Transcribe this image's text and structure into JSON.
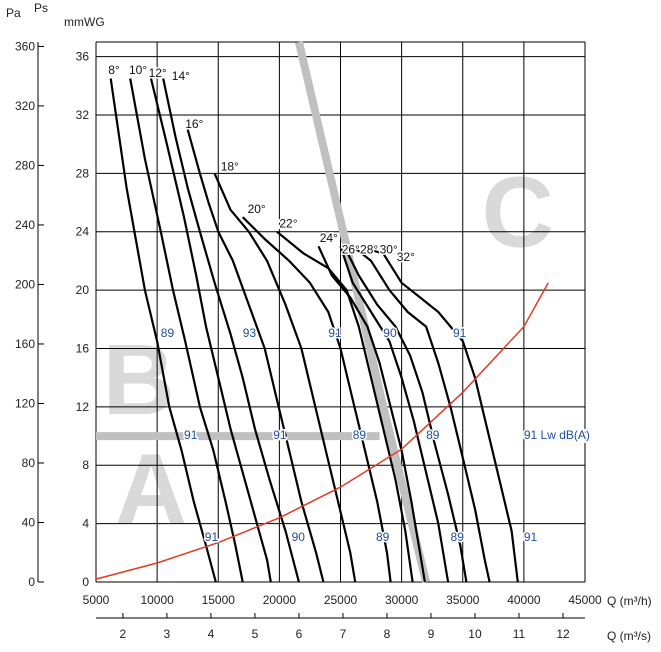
{
  "chart_data": {
    "type": "line",
    "axes": {
      "x_label_m3h": "Q (m³/h)",
      "x_label_m3s": "Q (m³/s)",
      "y_label_mmwg": "mmWG",
      "y_label_pa": "Pa",
      "y_label_ps": "Ps",
      "xlim_m3h": [
        5000,
        45000
      ],
      "ylim_mmwg": [
        0,
        37
      ],
      "x_ticks_m3h": [
        5000,
        10000,
        15000,
        20000,
        25000,
        30000,
        35000,
        40000,
        45000
      ],
      "x_ticks_m3s": [
        2,
        3,
        4,
        5,
        6,
        7,
        8,
        9,
        10,
        11,
        12
      ],
      "y_ticks_mmwg": [
        0,
        4,
        8,
        12,
        16,
        20,
        24,
        28,
        32,
        36
      ],
      "y_ticks_pa": [
        0,
        40,
        80,
        120,
        160,
        200,
        240,
        280,
        320,
        360
      ],
      "grid": true
    },
    "series": [
      {
        "name": "8°",
        "points": [
          [
            6200,
            34.5
          ],
          [
            7500,
            27
          ],
          [
            9000,
            20
          ],
          [
            10000,
            16.5
          ],
          [
            11000,
            12
          ],
          [
            12000,
            9
          ],
          [
            13000,
            5.5
          ],
          [
            14000,
            2.5
          ],
          [
            14800,
            0
          ]
        ]
      },
      {
        "name": "10°",
        "points": [
          [
            7800,
            34.5
          ],
          [
            9000,
            29
          ],
          [
            10300,
            24
          ],
          [
            11300,
            20
          ],
          [
            12300,
            16.5
          ],
          [
            13500,
            12
          ],
          [
            14600,
            9
          ],
          [
            15600,
            5.5
          ],
          [
            16400,
            2.5
          ],
          [
            17000,
            0
          ]
        ]
      },
      {
        "name": "12°",
        "points": [
          [
            9500,
            34.5
          ],
          [
            10800,
            30
          ],
          [
            12200,
            25
          ],
          [
            13200,
            21
          ],
          [
            14000,
            17.5
          ],
          [
            15000,
            14
          ],
          [
            16000,
            10.5
          ],
          [
            17000,
            7.5
          ],
          [
            18000,
            4.5
          ],
          [
            19000,
            1.5
          ],
          [
            19300,
            0
          ]
        ]
      },
      {
        "name": "14°",
        "points": [
          [
            10500,
            34.5
          ],
          [
            11500,
            30.5
          ],
          [
            12500,
            27
          ],
          [
            13500,
            24
          ],
          [
            14700,
            20.5
          ],
          [
            16000,
            17
          ],
          [
            17000,
            14
          ],
          [
            18000,
            10.5
          ],
          [
            19200,
            7
          ],
          [
            20500,
            3.5
          ],
          [
            21600,
            0
          ]
        ]
      },
      {
        "name": "16°",
        "points": [
          [
            12500,
            31
          ],
          [
            13500,
            28
          ],
          [
            14200,
            26
          ],
          [
            15000,
            24
          ],
          [
            16200,
            22
          ],
          [
            17500,
            19
          ],
          [
            18800,
            16
          ],
          [
            19800,
            12.5
          ],
          [
            20800,
            9
          ],
          [
            21800,
            5.5
          ],
          [
            23000,
            2
          ],
          [
            23600,
            0
          ]
        ]
      },
      {
        "name": "18°",
        "points": [
          [
            14700,
            28
          ],
          [
            16000,
            25.5
          ],
          [
            17500,
            24
          ],
          [
            19000,
            22
          ],
          [
            20500,
            19
          ],
          [
            21800,
            16
          ],
          [
            22800,
            12.5
          ],
          [
            23800,
            9
          ],
          [
            24800,
            5.5
          ],
          [
            25800,
            2
          ],
          [
            26200,
            0
          ]
        ]
      },
      {
        "name": "20°",
        "points": [
          [
            17000,
            25
          ],
          [
            18800,
            23.5
          ],
          [
            20800,
            22
          ],
          [
            22500,
            20.5
          ],
          [
            24000,
            18.5
          ],
          [
            25000,
            16
          ],
          [
            26000,
            12.5
          ],
          [
            27000,
            9
          ],
          [
            28000,
            5.5
          ],
          [
            28800,
            2
          ],
          [
            29100,
            0
          ]
        ]
      },
      {
        "name": "22°",
        "points": [
          [
            19800,
            24
          ],
          [
            22000,
            22.5
          ],
          [
            24000,
            21.5
          ],
          [
            25500,
            20
          ],
          [
            26500,
            17.5
          ],
          [
            27500,
            14
          ],
          [
            28500,
            10.5
          ],
          [
            29500,
            7
          ],
          [
            30300,
            3.5
          ],
          [
            30900,
            0
          ]
        ]
      },
      {
        "name": "24°",
        "points": [
          [
            23200,
            23
          ],
          [
            24300,
            21
          ],
          [
            25800,
            19.5
          ],
          [
            27200,
            17.5
          ],
          [
            28200,
            15
          ],
          [
            29100,
            12
          ],
          [
            30000,
            9
          ],
          [
            30800,
            5.5
          ],
          [
            31500,
            2
          ],
          [
            31900,
            0
          ]
        ]
      },
      {
        "name": "26°",
        "points": [
          [
            25000,
            23
          ],
          [
            26000,
            20.5
          ],
          [
            27500,
            18.5
          ],
          [
            29000,
            16.5
          ],
          [
            30000,
            14
          ],
          [
            31000,
            11
          ],
          [
            32000,
            7.5
          ],
          [
            33000,
            4
          ],
          [
            33800,
            0
          ]
        ]
      },
      {
        "name": "28°",
        "points": [
          [
            25300,
            23
          ],
          [
            26500,
            21
          ],
          [
            28000,
            19
          ],
          [
            29500,
            17.5
          ],
          [
            30700,
            15.5
          ],
          [
            31700,
            13
          ],
          [
            32700,
            9.5
          ],
          [
            33800,
            6
          ],
          [
            34800,
            2.5
          ],
          [
            35300,
            0
          ]
        ]
      },
      {
        "name": "30°",
        "points": [
          [
            26000,
            23
          ],
          [
            27500,
            22
          ],
          [
            29000,
            20
          ],
          [
            30500,
            18.5
          ],
          [
            32000,
            17.5
          ],
          [
            33000,
            15
          ],
          [
            34000,
            12
          ],
          [
            35000,
            8.5
          ],
          [
            36000,
            5
          ],
          [
            36800,
            1.5
          ],
          [
            37200,
            0
          ]
        ]
      },
      {
        "name": "32°",
        "points": [
          [
            26500,
            23
          ],
          [
            28500,
            22.5
          ],
          [
            30000,
            20.5
          ],
          [
            31500,
            19.5
          ],
          [
            33000,
            18.5
          ],
          [
            35000,
            16.5
          ],
          [
            36000,
            14
          ],
          [
            37000,
            10.5
          ],
          [
            38000,
            7
          ],
          [
            39000,
            3.5
          ],
          [
            39500,
            0
          ]
        ]
      }
    ],
    "system_curve": {
      "color": "#e03b24",
      "points": [
        [
          5000,
          0.2
        ],
        [
          10000,
          1.3
        ],
        [
          15000,
          2.7
        ],
        [
          20000,
          4.4
        ],
        [
          25000,
          6.5
        ],
        [
          30000,
          9.1
        ],
        [
          35000,
          13.0
        ],
        [
          40000,
          17.5
        ],
        [
          42000,
          20.5
        ]
      ]
    },
    "zone_boundaries": {
      "color": "#c0c0c0",
      "lines": [
        [
          [
            21600,
            37
          ],
          [
            25500,
            23
          ],
          [
            28500,
            12
          ],
          [
            32000,
            0
          ]
        ],
        [
          [
            5000,
            10
          ],
          [
            28200,
            10
          ]
        ]
      ]
    },
    "zones": [
      {
        "label": "A",
        "x": 9500,
        "y": 4
      },
      {
        "label": "B",
        "x": 8500,
        "y": 11.5
      },
      {
        "label": "C",
        "x": 39500,
        "y": 23
      }
    ],
    "angle_labels": [
      {
        "text": "8°",
        "x": 6000,
        "y": 34.8
      },
      {
        "text": "10°",
        "x": 7700,
        "y": 34.8
      },
      {
        "text": "12°",
        "x": 9300,
        "y": 34.6
      },
      {
        "text": "14°",
        "x": 11200,
        "y": 34.4
      },
      {
        "text": "16°",
        "x": 12300,
        "y": 31.1
      },
      {
        "text": "18°",
        "x": 15200,
        "y": 28.2
      },
      {
        "text": "20°",
        "x": 17400,
        "y": 25.3
      },
      {
        "text": "22°",
        "x": 20000,
        "y": 24.3
      },
      {
        "text": "24°",
        "x": 23300,
        "y": 23.3
      },
      {
        "text": "26°",
        "x": 25100,
        "y": 22.5
      },
      {
        "text": "28°",
        "x": 26600,
        "y": 22.5
      },
      {
        "text": "30°",
        "x": 28200,
        "y": 22.5
      },
      {
        "text": "32°",
        "x": 29600,
        "y": 22.0
      }
    ],
    "db_labels": [
      {
        "text": "89",
        "x": 10300,
        "y": 16.8
      },
      {
        "text": "93",
        "x": 17000,
        "y": 16.8
      },
      {
        "text": "91",
        "x": 24000,
        "y": 16.8
      },
      {
        "text": "90",
        "x": 28500,
        "y": 16.8
      },
      {
        "text": "91",
        "x": 34200,
        "y": 16.8
      },
      {
        "text": "91",
        "x": 12200,
        "y": 9.8
      },
      {
        "text": "91",
        "x": 19500,
        "y": 9.8
      },
      {
        "text": "89",
        "x": 26000,
        "y": 9.8
      },
      {
        "text": "89",
        "x": 32000,
        "y": 9.8
      },
      {
        "text": "91 Lw dB(A)",
        "x": 40000,
        "y": 9.8
      },
      {
        "text": "91",
        "x": 13900,
        "y": 2.8
      },
      {
        "text": "90",
        "x": 21000,
        "y": 2.8
      },
      {
        "text": "89",
        "x": 27900,
        "y": 2.8
      },
      {
        "text": "89",
        "x": 34000,
        "y": 2.8
      },
      {
        "text": "91",
        "x": 40000,
        "y": 2.8
      }
    ]
  }
}
